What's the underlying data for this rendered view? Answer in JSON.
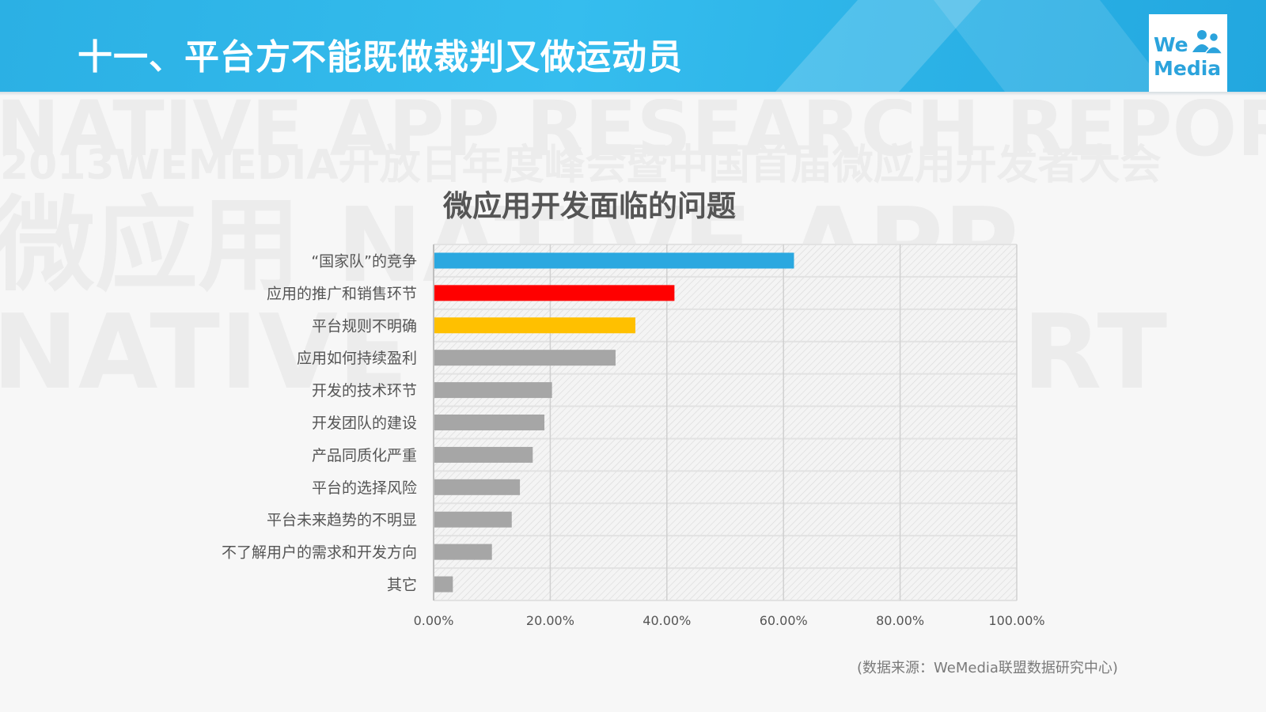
{
  "slide": {
    "title": "十一、平台方不能既做裁判又做运动员",
    "source": "(数据来源：WeMedia联盟数据研究中心)"
  },
  "logo": {
    "line1": "We",
    "line2": "Media"
  },
  "watermark": {
    "line1": "NATIVE APP RESEARCH REPORT",
    "line2": "2013WEMEDIA开放日年度峰会暨中国首届微应用开发者大会",
    "line3": "微应用 NATIVE APP",
    "line4": "NATIVE APP REPORT"
  },
  "colors": {
    "header": "#2bb0e4",
    "blue": "#2ba8e0",
    "red": "#ff0000",
    "yellow": "#ffc000",
    "gray": "#a6a6a6"
  },
  "chart_data": {
    "type": "bar",
    "orientation": "horizontal",
    "title": "微应用开发面临的问题",
    "categories": [
      "“国家队”的竞争",
      "应用的推广和销售环节",
      "平台规则不明确",
      "应用如何持续盈利",
      "开发的技术环节",
      "开发团队的建设",
      "产品同质化严重",
      "平台的选择风险",
      "平台未来趋势的不明显",
      "不了解用户的需求和开发方向",
      "其它"
    ],
    "values": [
      61.8,
      41.3,
      34.6,
      31.2,
      20.3,
      19.0,
      17.0,
      14.8,
      13.4,
      10.0,
      3.3
    ],
    "bar_colors": [
      "#2ba8e0",
      "#ff0000",
      "#ffc000",
      "#a6a6a6",
      "#a6a6a6",
      "#a6a6a6",
      "#a6a6a6",
      "#a6a6a6",
      "#a6a6a6",
      "#a6a6a6",
      "#a6a6a6"
    ],
    "xlim": [
      0,
      100
    ],
    "x_ticks": [
      "0.00%",
      "20.00%",
      "40.00%",
      "60.00%",
      "80.00%",
      "100.00%"
    ],
    "grid": true,
    "legend": "none"
  }
}
